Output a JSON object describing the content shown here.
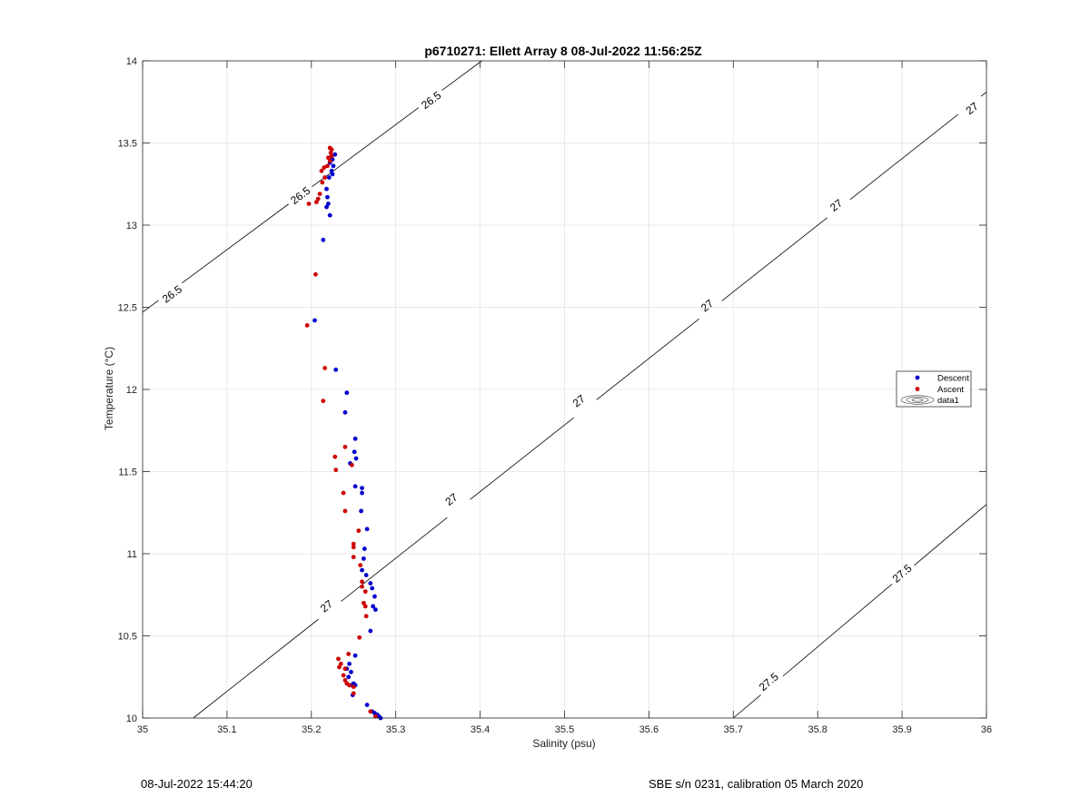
{
  "chart_data": {
    "type": "scatter",
    "title": "p6710271: Ellett Array 8 08-Jul-2022 11:56:25Z",
    "xlabel": "Salinity (psu)",
    "ylabel": "Temperature (°C)",
    "xlim": [
      35,
      36
    ],
    "ylim": [
      10,
      14
    ],
    "xticks": [
      35,
      35.1,
      35.2,
      35.3,
      35.4,
      35.5,
      35.6,
      35.7,
      35.8,
      35.9,
      36
    ],
    "xtick_labels": [
      "35",
      "35.1",
      "35.2",
      "35.3",
      "35.4",
      "35.5",
      "35.6",
      "35.7",
      "35.8",
      "35.9",
      "36"
    ],
    "yticks": [
      10,
      10.5,
      11,
      11.5,
      12,
      12.5,
      13,
      13.5,
      14
    ],
    "ytick_labels": [
      "10",
      "10.5",
      "11",
      "11.5",
      "12",
      "12.5",
      "13",
      "13.5",
      "14"
    ],
    "grid": true,
    "legend_position": "right",
    "series": [
      {
        "name": "Descent",
        "color": "#0000cc",
        "points": [
          [
            35.228,
            13.43
          ],
          [
            35.225,
            13.4
          ],
          [
            35.222,
            13.38
          ],
          [
            35.226,
            13.36
          ],
          [
            35.224,
            13.33
          ],
          [
            35.225,
            13.31
          ],
          [
            35.221,
            13.29
          ],
          [
            35.218,
            13.22
          ],
          [
            35.219,
            13.17
          ],
          [
            35.22,
            13.13
          ],
          [
            35.218,
            13.11
          ],
          [
            35.222,
            13.06
          ],
          [
            35.214,
            12.91
          ],
          [
            35.204,
            12.42
          ],
          [
            35.229,
            12.12
          ],
          [
            35.242,
            11.98
          ],
          [
            35.24,
            11.86
          ],
          [
            35.252,
            11.7
          ],
          [
            35.251,
            11.62
          ],
          [
            35.253,
            11.58
          ],
          [
            35.246,
            11.55
          ],
          [
            35.252,
            11.41
          ],
          [
            35.26,
            11.4
          ],
          [
            35.26,
            11.37
          ],
          [
            35.259,
            11.26
          ],
          [
            35.266,
            11.15
          ],
          [
            35.263,
            11.03
          ],
          [
            35.262,
            10.97
          ],
          [
            35.26,
            10.9
          ],
          [
            35.265,
            10.87
          ],
          [
            35.27,
            10.82
          ],
          [
            35.272,
            10.79
          ],
          [
            35.275,
            10.74
          ],
          [
            35.273,
            10.68
          ],
          [
            35.276,
            10.66
          ],
          [
            35.27,
            10.53
          ],
          [
            35.252,
            10.38
          ],
          [
            35.245,
            10.33
          ],
          [
            35.242,
            10.3
          ],
          [
            35.247,
            10.28
          ],
          [
            35.244,
            10.25
          ],
          [
            35.25,
            10.21
          ],
          [
            35.248,
            10.2
          ],
          [
            35.252,
            10.2
          ],
          [
            35.249,
            10.14
          ],
          [
            35.266,
            10.08
          ],
          [
            35.272,
            10.04
          ],
          [
            35.275,
            10.03
          ],
          [
            35.278,
            10.02
          ],
          [
            35.28,
            10.01
          ],
          [
            35.282,
            10.0
          ]
        ]
      },
      {
        "name": "Ascent",
        "color": "#cc0000",
        "points": [
          [
            35.222,
            13.47
          ],
          [
            35.224,
            13.46
          ],
          [
            35.223,
            13.44
          ],
          [
            35.224,
            13.42
          ],
          [
            35.22,
            13.41
          ],
          [
            35.222,
            13.39
          ],
          [
            35.219,
            13.36
          ],
          [
            35.215,
            13.35
          ],
          [
            35.212,
            13.33
          ],
          [
            35.216,
            13.29
          ],
          [
            35.213,
            13.26
          ],
          [
            35.21,
            13.19
          ],
          [
            35.208,
            13.16
          ],
          [
            35.206,
            13.14
          ],
          [
            35.197,
            13.13
          ],
          [
            35.205,
            12.7
          ],
          [
            35.195,
            12.39
          ],
          [
            35.216,
            12.13
          ],
          [
            35.214,
            11.93
          ],
          [
            35.24,
            11.65
          ],
          [
            35.228,
            11.59
          ],
          [
            35.248,
            11.54
          ],
          [
            35.229,
            11.51
          ],
          [
            35.238,
            11.37
          ],
          [
            35.24,
            11.26
          ],
          [
            35.256,
            11.14
          ],
          [
            35.25,
            11.06
          ],
          [
            35.25,
            11.04
          ],
          [
            35.25,
            10.98
          ],
          [
            35.258,
            10.93
          ],
          [
            35.26,
            10.83
          ],
          [
            35.26,
            10.8
          ],
          [
            35.264,
            10.77
          ],
          [
            35.262,
            10.7
          ],
          [
            35.264,
            10.68
          ],
          [
            35.265,
            10.62
          ],
          [
            35.257,
            10.49
          ],
          [
            35.244,
            10.39
          ],
          [
            35.232,
            10.36
          ],
          [
            35.235,
            10.33
          ],
          [
            35.233,
            10.31
          ],
          [
            35.24,
            10.3
          ],
          [
            35.238,
            10.26
          ],
          [
            35.24,
            10.23
          ],
          [
            35.242,
            10.21
          ],
          [
            35.245,
            10.2
          ],
          [
            35.25,
            10.19
          ],
          [
            35.25,
            10.15
          ],
          [
            35.27,
            10.04
          ],
          [
            35.276,
            10.01
          ]
        ]
      }
    ],
    "contours": [
      {
        "label": "26.5",
        "line": [
          [
            35.0,
            12.47
          ],
          [
            35.402,
            14.0
          ]
        ],
        "label_positions": [
          [
            35.035,
            12.58
          ],
          [
            35.187,
            13.18
          ],
          [
            35.342,
            13.76
          ]
        ]
      },
      {
        "label": "27",
        "line": [
          [
            35.06,
            10.0
          ],
          [
            36.0,
            13.81
          ]
        ],
        "label_positions": [
          [
            35.218,
            10.68
          ],
          [
            35.366,
            11.33
          ],
          [
            35.517,
            11.93
          ],
          [
            35.669,
            12.51
          ],
          [
            35.822,
            13.12
          ],
          [
            35.983,
            13.71
          ]
        ]
      },
      {
        "label": "27.5",
        "line": [
          [
            35.7,
            10.0
          ],
          [
            36.0,
            11.3
          ]
        ],
        "label_positions": [
          [
            35.742,
            10.22
          ],
          [
            35.9,
            10.88
          ]
        ]
      }
    ],
    "legend_entries": [
      "Descent",
      "Ascent",
      "data1"
    ]
  },
  "footer": {
    "date": "08-Jul-2022 15:44:20",
    "calibration": "SBE s/n 0231, calibration 05 March 2020"
  }
}
